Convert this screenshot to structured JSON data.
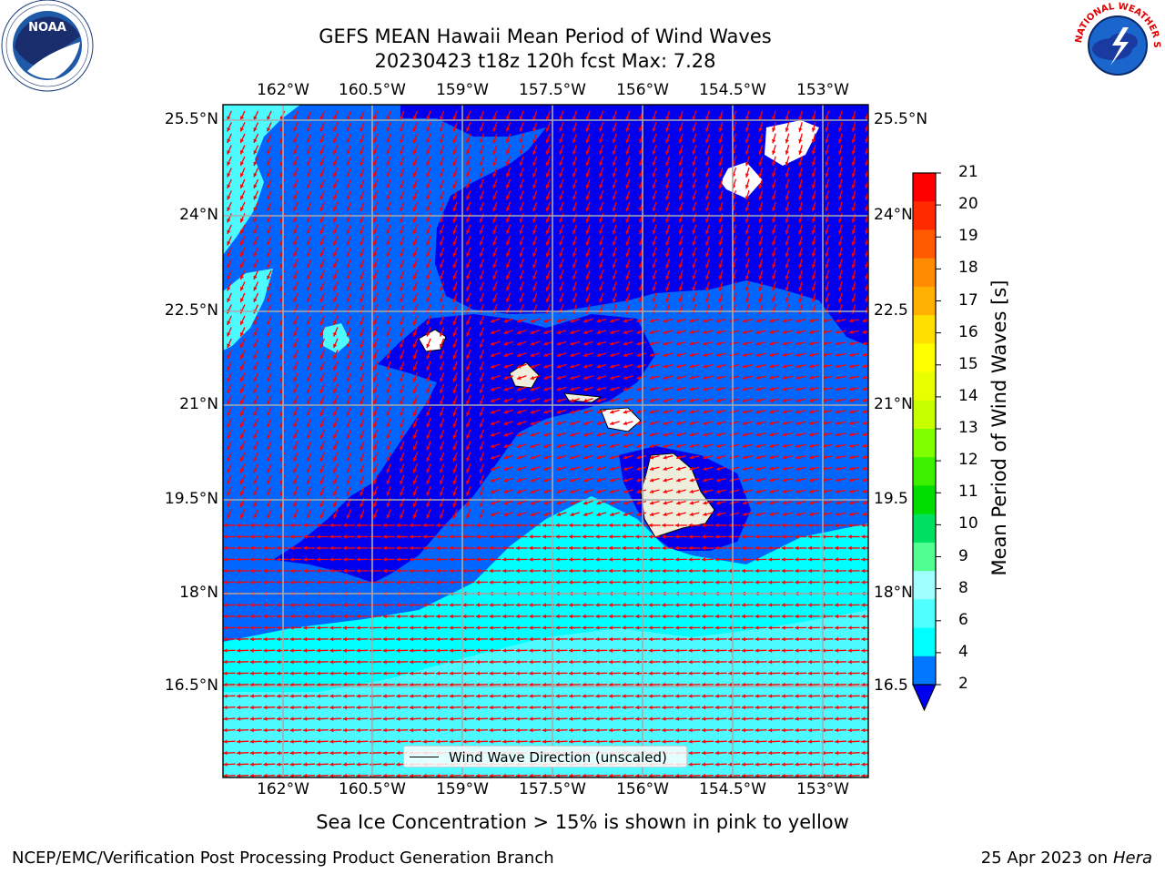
{
  "title": {
    "line1": "GEFS MEAN Hawaii Mean Period of Wind Waves",
    "line2": "20230423 t18z 120h fcst   Max: 7.28"
  },
  "logos": {
    "left": {
      "name": "NOAA",
      "ring_text": "NATIONAL OCEANIC AND ATMOSPHERIC ADMINISTRATION · U.S. DEPARTMENT OF COMMERCE"
    },
    "right": {
      "name": "National Weather Service",
      "ring_text": "NATIONAL WEATHER SERVICE"
    }
  },
  "map": {
    "lon_ticks": [
      "162°W",
      "160.5°W",
      "159°W",
      "157.5°W",
      "156°W",
      "154.5°W",
      "153°W"
    ],
    "lat_ticks": [
      "25.5°N",
      "24°N",
      "22.5°N",
      "21°N",
      "19.5°N",
      "18°N",
      "16.5°N"
    ],
    "lat_ticks_right": [
      "25.5°N",
      "24°N",
      "22.5",
      "21°N",
      "19.5",
      "18°N",
      "16.5"
    ],
    "legend_label": "Wind Wave Direction (unscaled)",
    "colors": {
      "band_2_4": "#0066ff",
      "band_below_2": "#0000ee",
      "band_4_6": "#00ffff",
      "band_6_8": "#4dfaff",
      "land": "#efeedc",
      "arrow": "#ff0000",
      "grid": "#aaaaaa"
    }
  },
  "colorbar": {
    "title": "Mean Period of Wind Waves [s]",
    "ticks": [
      "21",
      "20",
      "19",
      "18",
      "17",
      "16",
      "15",
      "14",
      "13",
      "12",
      "11",
      "10",
      "9",
      "8",
      "6",
      "4",
      "2"
    ],
    "colors_top_to_bottom": [
      "#ff0000",
      "#ff2a00",
      "#ff5a00",
      "#ff8c00",
      "#ffb000",
      "#ffe000",
      "#ffff00",
      "#e8ff00",
      "#c8ff00",
      "#80ff00",
      "#3cf000",
      "#00dd00",
      "#00e060",
      "#50ff90",
      "#a0ffff",
      "#50ffff",
      "#00ffff",
      "#0077ff"
    ],
    "extend_color": "#0000ee"
  },
  "note": "Sea Ice Concentration > 15% is shown in pink to yellow",
  "footer": {
    "left": "NCEP/EMC/Verification Post Processing Product Generation Branch",
    "right_date": "25 Apr 2023 on",
    "right_host": "Hera"
  }
}
